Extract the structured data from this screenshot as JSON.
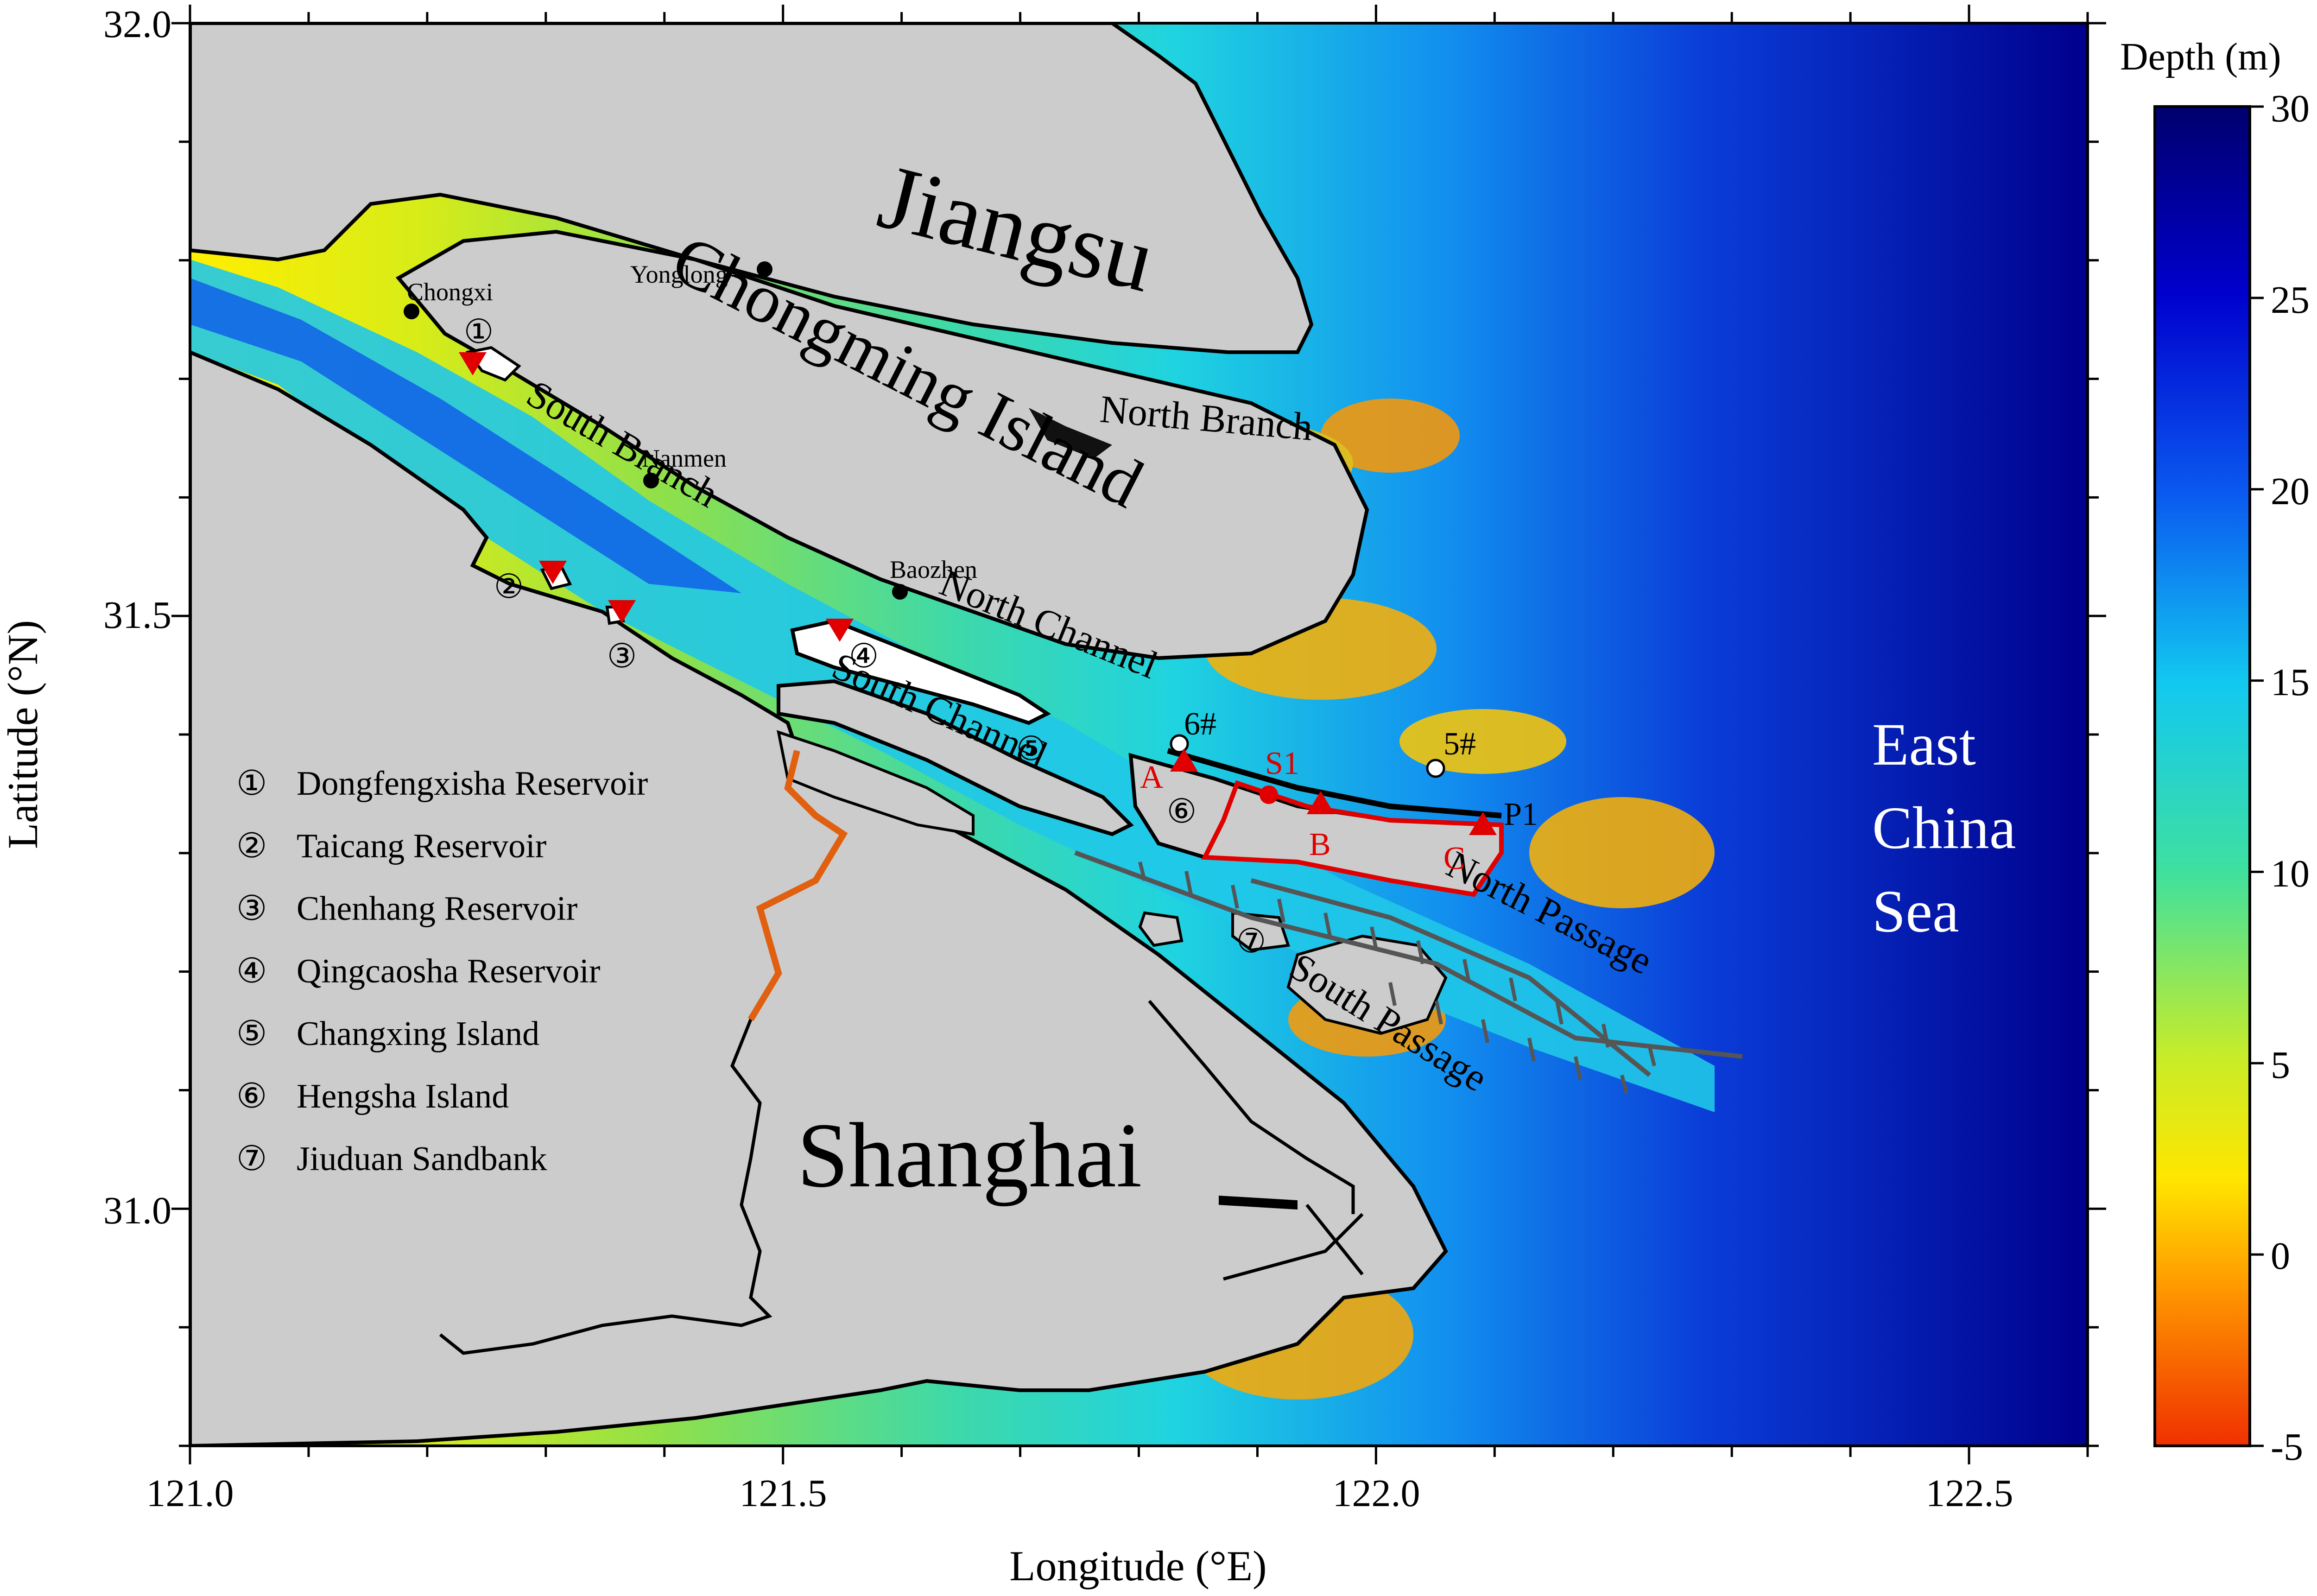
{
  "axes": {
    "xlabel": "Longitude (°E)",
    "ylabel": "Latitude (°N)",
    "x_ticks": [
      {
        "value": 121.0,
        "label": "121.0"
      },
      {
        "value": 121.5,
        "label": "121.5"
      },
      {
        "value": 122.0,
        "label": "122.0"
      },
      {
        "value": 122.5,
        "label": "122.5"
      }
    ],
    "y_ticks": [
      {
        "value": 32.0,
        "label": "32.0"
      },
      {
        "value": 31.5,
        "label": "31.5"
      },
      {
        "value": 31.0,
        "label": "31.0"
      }
    ],
    "xlim": [
      121.0,
      122.6
    ],
    "ylim": [
      30.8,
      32.0
    ]
  },
  "colorbar": {
    "title": "Depth (m)",
    "ticks": [
      "30",
      "25",
      "20",
      "15",
      "10",
      "5",
      "0",
      "-5"
    ],
    "range": [
      -5,
      30
    ]
  },
  "regions": {
    "jiangsu": "Jiangsu",
    "chongming": "Chongming Island",
    "shanghai": "Shanghai",
    "sea_line1": "East",
    "sea_line2": "China",
    "sea_line3": "Sea"
  },
  "channels": {
    "north_branch": "North Branch",
    "south_branch": "South Branch",
    "north_channel": "North Channel",
    "south_channel": "South Channel",
    "north_passage": "North Passage",
    "south_passage": "South Passage"
  },
  "stations": {
    "chongxi": "Chongxi",
    "yonglong": "Yonglong",
    "nanmen": "Nanmen",
    "baozhen": "Baozhen",
    "s6": "6#",
    "s5": "5#"
  },
  "red_labels": {
    "a": "A",
    "b": "B",
    "c": "C",
    "s1": "S1"
  },
  "p1_label": "P1",
  "markers": {
    "m1": "①",
    "m2": "②",
    "m3": "③",
    "m4": "④",
    "m5": "⑤",
    "m6": "⑥",
    "m7": "⑦"
  },
  "legend": [
    {
      "num": "①",
      "text": "Dongfengxisha Reservoir"
    },
    {
      "num": "②",
      "text": "Taicang Reservoir"
    },
    {
      "num": "③",
      "text": "Chenhang Reservoir"
    },
    {
      "num": "④",
      "text": "Qingcaosha Reservoir"
    },
    {
      "num": "⑤",
      "text": "Changxing Island"
    },
    {
      "num": "⑥",
      "text": "Hengsha Island"
    },
    {
      "num": "⑦",
      "text": "Jiuduan Sandbank"
    }
  ],
  "colors": {
    "land": "#cccccc",
    "sea_deep": "#00008c",
    "sea_shallow": "#ffee00",
    "marker_red": "#e00000"
  }
}
